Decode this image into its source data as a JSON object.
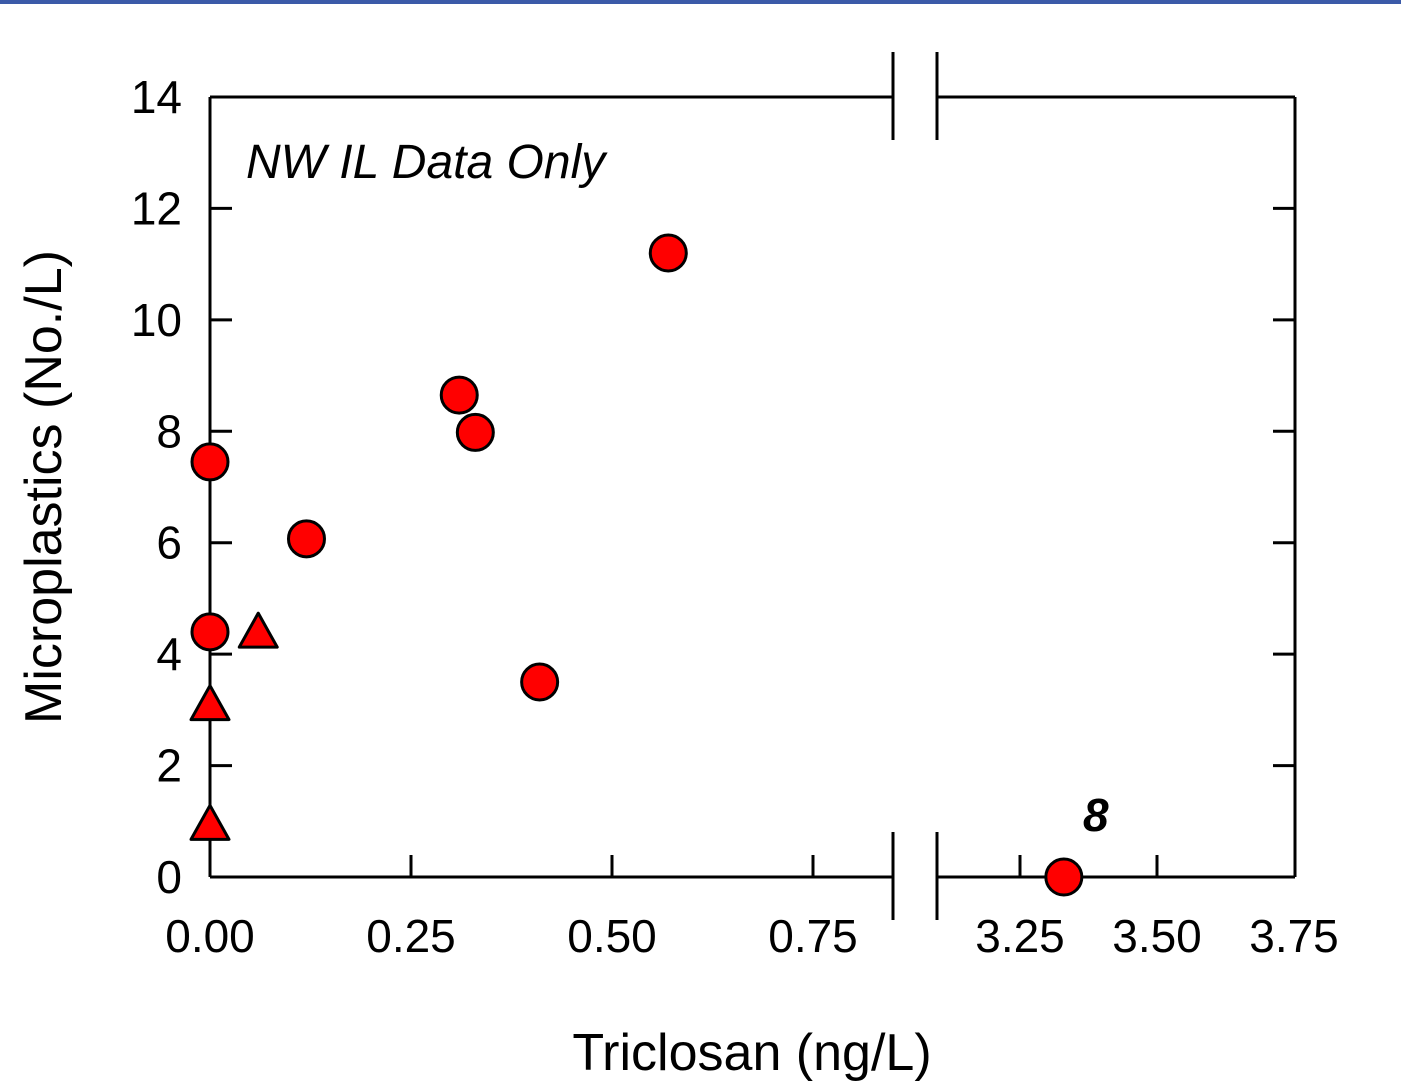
{
  "chart_data": {
    "type": "scatter",
    "title": "",
    "xlabel": "Triclosan (ng/L)",
    "ylabel": "Microplastics (No./L)",
    "x_broken_axis": {
      "segments": [
        {
          "xlim": [
            0,
            0.85
          ]
        },
        {
          "xlim": [
            3.1,
            3.75
          ]
        }
      ],
      "break_marks": true
    },
    "ylim": [
      0,
      14
    ],
    "xticks_segment1": [
      "0.00",
      "0.25",
      "0.50",
      "0.75"
    ],
    "xticks_segment1_values": [
      0,
      0.25,
      0.5,
      0.75
    ],
    "xticks_segment2": [
      "3.25",
      "3.50",
      "3.75"
    ],
    "xticks_segment2_values": [
      3.25,
      3.5,
      3.75
    ],
    "yticks": [
      "0",
      "2",
      "4",
      "6",
      "8",
      "10",
      "12",
      "14"
    ],
    "yticks_values": [
      0,
      2,
      4,
      6,
      8,
      10,
      12,
      14
    ],
    "grid": false,
    "colors": {
      "marker_fill": "#ff0000",
      "marker_edge": "#000000",
      "top_rule": "#3b5aa8"
    },
    "series": [
      {
        "marker": "circle",
        "points": [
          {
            "x": 0.0,
            "y": 7.45
          },
          {
            "x": 0.0,
            "y": 4.4
          },
          {
            "x": 0.12,
            "y": 6.07
          },
          {
            "x": 0.31,
            "y": 8.65
          },
          {
            "x": 0.33,
            "y": 7.98
          },
          {
            "x": 0.41,
            "y": 3.5
          },
          {
            "x": 0.57,
            "y": 11.2
          },
          {
            "x": 3.33,
            "y": 0.0
          }
        ]
      },
      {
        "marker": "triangle",
        "points": [
          {
            "x": 0.0,
            "y": 0.95
          },
          {
            "x": 0.0,
            "y": 3.1
          },
          {
            "x": 0.06,
            "y": 4.4
          }
        ]
      }
    ],
    "annotations": [
      {
        "text": "NW IL Data Only",
        "style": "italic"
      },
      {
        "text": "8",
        "style": "bold-italic",
        "point_x": 3.33,
        "point_y": 0.0
      }
    ]
  }
}
